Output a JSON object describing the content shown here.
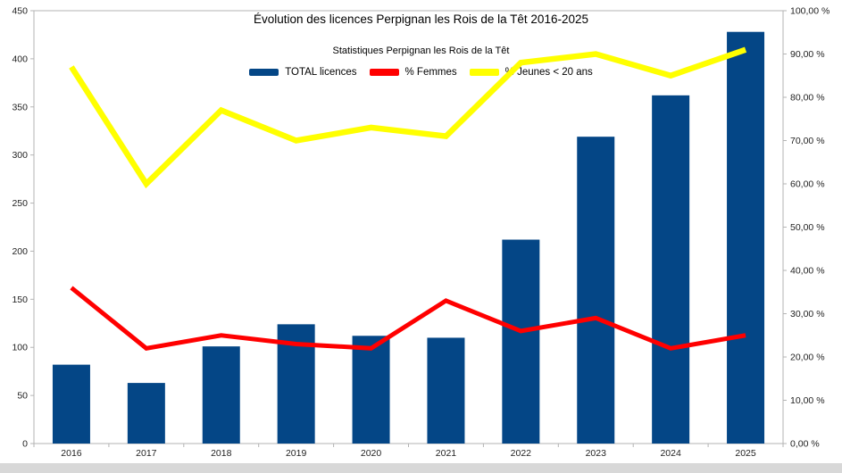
{
  "chart_data": {
    "type": "bar",
    "title": "Évolution des licences Perpignan les Rois de la Têt 2016-2025",
    "subtitle": "Statistiques Perpignan les Rois de la Têt",
    "categories": [
      "2016",
      "2017",
      "2018",
      "2019",
      "2020",
      "2021",
      "2022",
      "2023",
      "2024",
      "2025"
    ],
    "series": [
      {
        "name": "TOTAL licences",
        "type": "bar",
        "axis": "left",
        "color": "#044686",
        "values": [
          82,
          63,
          101,
          124,
          112,
          110,
          212,
          319,
          362,
          428
        ]
      },
      {
        "name": "% Femmes",
        "type": "line",
        "axis": "right",
        "color": "#ff0000",
        "values": [
          36,
          22,
          25,
          23,
          22,
          33,
          26,
          29,
          22,
          25
        ]
      },
      {
        "name": "% Jeunes < 20 ans",
        "type": "line",
        "axis": "right",
        "color": "#ffff00",
        "values": [
          87,
          60,
          77,
          70,
          73,
          71,
          88,
          90,
          85,
          91
        ]
      }
    ],
    "left_axis": {
      "min": 0,
      "max": 450,
      "step": 50,
      "tick_labels": [
        "0",
        "50",
        "100",
        "150",
        "200",
        "250",
        "300",
        "350",
        "400",
        "450"
      ]
    },
    "right_axis": {
      "min": 0,
      "max": 100,
      "step": 10,
      "tick_labels": [
        "0,00 %",
        "10,00 %",
        "20,00 %",
        "30,00 %",
        "40,00 %",
        "50,00 %",
        "60,00 %",
        "70,00 %",
        "80,00 %",
        "90,00 %",
        "100,00 %"
      ]
    },
    "legend_position": "top",
    "grid": false,
    "axis_line_color": "#b3b3b3",
    "background_color": "#ffffff"
  }
}
